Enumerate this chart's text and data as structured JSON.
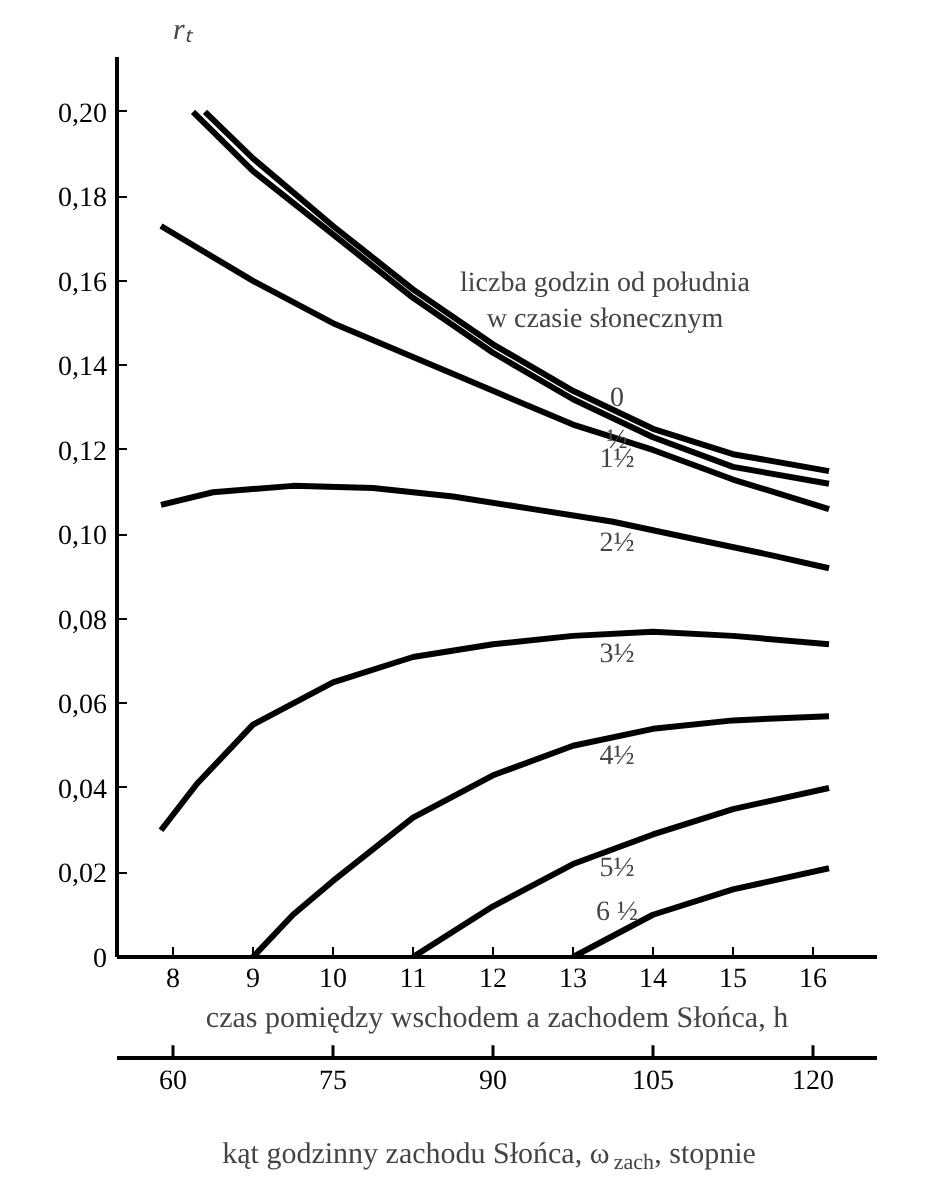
{
  "chart_data": {
    "type": "line",
    "ylabel": "rₜ",
    "xlabel": "czas pomiędzy wschodem a zachodem Słońca, h",
    "x2label": "kąt godzinny zachodu Słońca, ω$_{zach}$, stopnie",
    "legend_title": "liczba godzin od południa\nw czasie słonecznym",
    "legend": false,
    "grid": false,
    "marker": "none",
    "line_style": "solid",
    "xlim": [
      7.3,
      16.8
    ],
    "xticks": [
      8,
      9,
      10,
      11,
      12,
      13,
      14,
      15,
      16
    ],
    "x2lim": [
      54.75,
      126
    ],
    "x2ticks": [
      60,
      75,
      90,
      105,
      120
    ],
    "ylim": [
      0,
      0.213
    ],
    "yticks": [
      {
        "value": 0,
        "label": "0"
      },
      {
        "value": 0.02,
        "label": "0,02"
      },
      {
        "value": 0.04,
        "label": "0,04"
      },
      {
        "value": 0.06,
        "label": "0,06"
      },
      {
        "value": 0.08,
        "label": "0,08"
      },
      {
        "value": 0.1,
        "label": "0,10"
      },
      {
        "value": 0.12,
        "label": "0,12"
      },
      {
        "value": 0.14,
        "label": "0,14"
      },
      {
        "value": 0.16,
        "label": "0,16"
      },
      {
        "value": 0.18,
        "label": "0,18"
      },
      {
        "value": 0.2,
        "label": "0,20"
      }
    ],
    "series": [
      {
        "name": "0",
        "color": "#000000",
        "x": [
          8.4,
          9,
          10,
          11,
          12,
          13,
          14,
          15,
          16.2
        ],
        "values": [
          0.2,
          0.189,
          0.173,
          0.158,
          0.145,
          0.134,
          0.125,
          0.119,
          0.115
        ]
      },
      {
        "name": "½",
        "color": "#000000",
        "x": [
          8.25,
          9,
          10,
          11,
          12,
          13,
          14,
          15,
          16.2
        ],
        "values": [
          0.2,
          0.186,
          0.171,
          0.156,
          0.143,
          0.132,
          0.123,
          0.116,
          0.112
        ]
      },
      {
        "name": "1½",
        "color": "#000000",
        "x": [
          7.85,
          9,
          10,
          11,
          12,
          13,
          14,
          15,
          16.2
        ],
        "values": [
          0.173,
          0.16,
          0.15,
          0.142,
          0.134,
          0.126,
          0.12,
          0.113,
          0.106
        ]
      },
      {
        "name": "2½",
        "color": "#000000",
        "x": [
          7.85,
          8.5,
          9.5,
          10.5,
          11.5,
          12.5,
          13.5,
          14.5,
          15.5,
          16.2
        ],
        "values": [
          0.107,
          0.11,
          0.1115,
          0.111,
          0.109,
          0.106,
          0.103,
          0.099,
          0.095,
          0.092
        ]
      },
      {
        "name": "3½",
        "color": "#000000",
        "x": [
          7.85,
          8.3,
          9,
          10,
          11,
          12,
          13,
          14,
          15,
          16.2
        ],
        "values": [
          0.03,
          0.041,
          0.055,
          0.065,
          0.071,
          0.074,
          0.076,
          0.077,
          0.076,
          0.074
        ]
      },
      {
        "name": "4½",
        "color": "#000000",
        "x": [
          9,
          9.5,
          10,
          11,
          12,
          13,
          14,
          15,
          16.2
        ],
        "values": [
          0,
          0.01,
          0.018,
          0.033,
          0.043,
          0.05,
          0.054,
          0.056,
          0.057
        ]
      },
      {
        "name": "5½",
        "color": "#000000",
        "x": [
          11,
          12,
          13,
          14,
          15,
          16.2
        ],
        "values": [
          0,
          0.012,
          0.022,
          0.029,
          0.035,
          0.04
        ]
      },
      {
        "name": "6 ½",
        "color": "#000000",
        "x": [
          13,
          14,
          15,
          16.2
        ],
        "values": [
          0,
          0.01,
          0.016,
          0.021
        ]
      }
    ]
  }
}
